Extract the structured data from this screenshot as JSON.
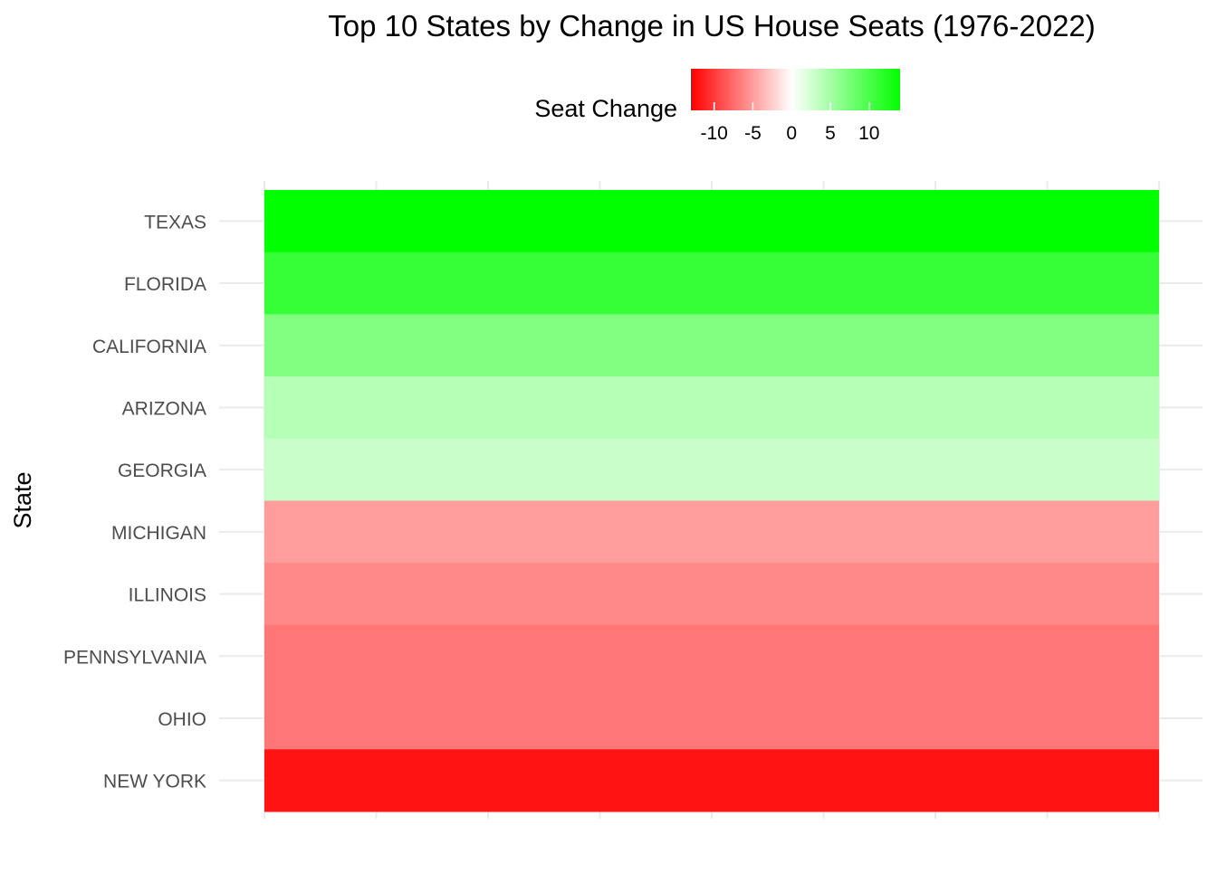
{
  "chart_data": {
    "type": "heatmap",
    "title": "Top 10 States by Change in US House Seats (1976-2022)",
    "ylabel": "State",
    "xlabel": "",
    "categories": [
      "TEXAS",
      "FLORIDA",
      "CALIFORNIA",
      "ARIZONA",
      "GEORGIA",
      "MICHIGAN",
      "ILLINOIS",
      "PENNSYLVANIA",
      "OHIO",
      "NEW YORK"
    ],
    "values": [
      14,
      11,
      7,
      4,
      3,
      -5,
      -6,
      -7,
      -7,
      -12
    ],
    "legend": {
      "title": "Seat Change",
      "placement": "top",
      "ticks": [
        -10,
        -5,
        0,
        5,
        10
      ],
      "range": [
        -13,
        14
      ]
    },
    "colors": {
      "low": "#ff0000",
      "mid": "#ffffff",
      "high": "#00ff00"
    },
    "grid": true
  }
}
